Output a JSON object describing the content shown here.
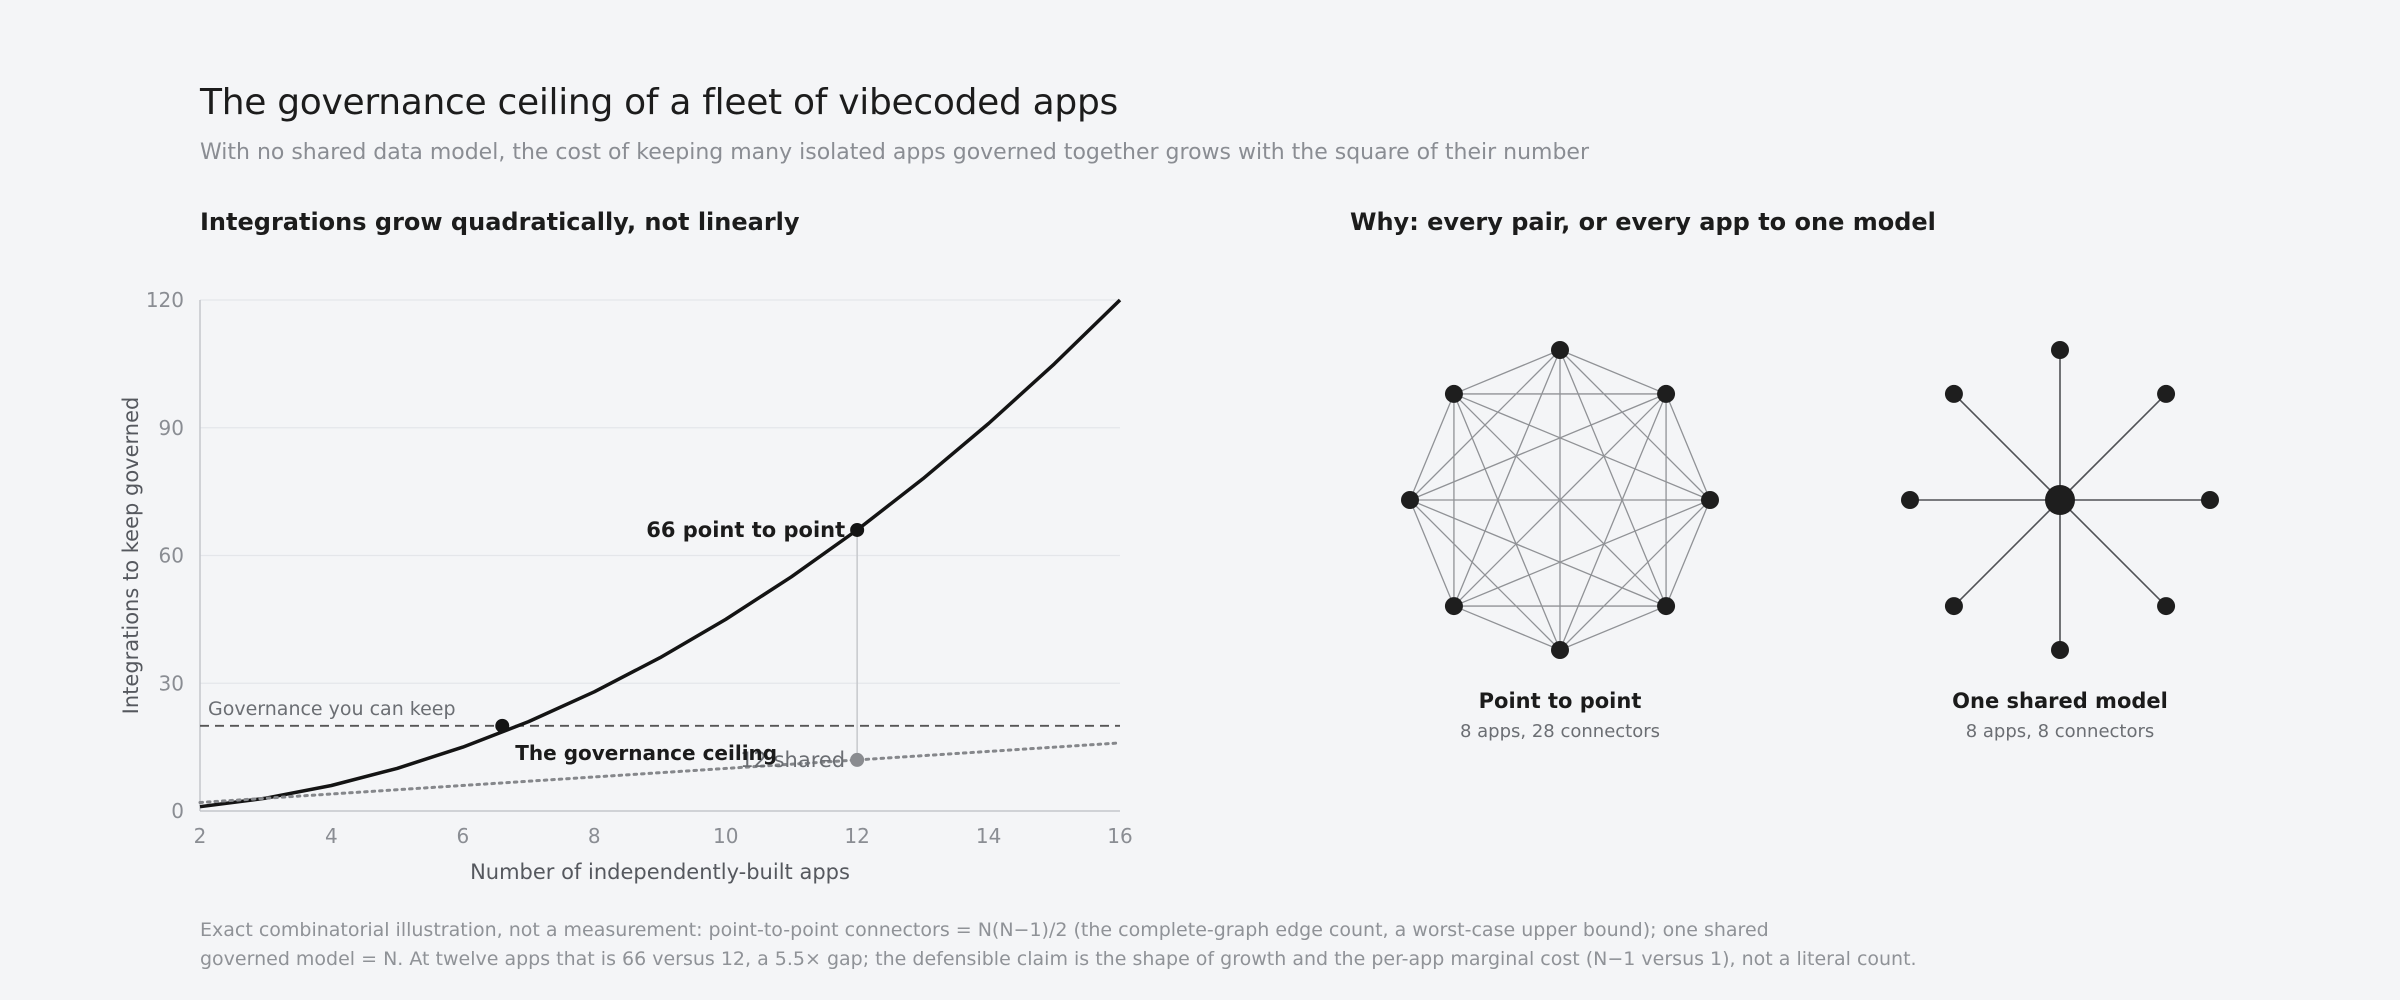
{
  "header": {
    "title": "The governance ceiling of a fleet of vibecoded apps",
    "subtitle": "With no shared data model, the cost of keeping many isolated apps governed together grows with the square of their number"
  },
  "left_panel": {
    "title": "Integrations grow quadratically, not linearly"
  },
  "right_panel": {
    "title": "Why: every pair, or every app to one model",
    "mesh_caption": "Point to point",
    "mesh_subcaption": "8 apps, 28 connectors",
    "star_caption": "One shared model",
    "star_subcaption": "8 apps, 8 connectors"
  },
  "chart_data": [
    {
      "type": "line",
      "title": "Integrations grow quadratically, not linearly",
      "xlabel": "Number of independently-built apps",
      "ylabel": "Integrations to keep governed",
      "xlim": [
        2,
        16
      ],
      "ylim": [
        0,
        120
      ],
      "xticks": [
        2,
        4,
        6,
        8,
        10,
        12,
        14,
        16
      ],
      "yticks": [
        0,
        30,
        60,
        90,
        120
      ],
      "grid": "horizontal",
      "series": [
        {
          "style": "solid",
          "color": "#141414",
          "x": [
            2,
            3,
            4,
            5,
            6,
            7,
            8,
            9,
            10,
            11,
            12,
            13,
            14,
            15,
            16
          ],
          "y": [
            1,
            3,
            6,
            10,
            15,
            21,
            28,
            36,
            45,
            55,
            66,
            78,
            91,
            105,
            120
          ]
        },
        {
          "style": "dotted",
          "color": "#85878b",
          "x": [
            2,
            16
          ],
          "y": [
            2,
            16
          ]
        }
      ],
      "reference_line": {
        "y": 20,
        "label": "Governance you can keep",
        "color": "#555555"
      },
      "annotations": [
        {
          "x": 12,
          "y": 66,
          "label": "66 point to point"
        },
        {
          "x": 12,
          "y": 12,
          "label": "12 shared"
        },
        {
          "x": 6.6,
          "y": 20,
          "label": "The governance ceiling"
        }
      ]
    }
  ],
  "footnote": {
    "line1": "Exact combinatorial illustration, not a measurement: point-to-point connectors = N(N−1)/2 (the complete-graph edge count, a worst-case upper bound); one shared",
    "line2": "governed model = N. At twelve apps that is 66 versus 12, a 5.5× gap; the defensible claim is the shape of growth and the per-app marginal cost (N−1 versus 1), not a literal count."
  },
  "colors": {
    "background": "#f4f5f7",
    "curve": "#141414",
    "shared": "#85878b",
    "node": "#1e1e1e"
  }
}
